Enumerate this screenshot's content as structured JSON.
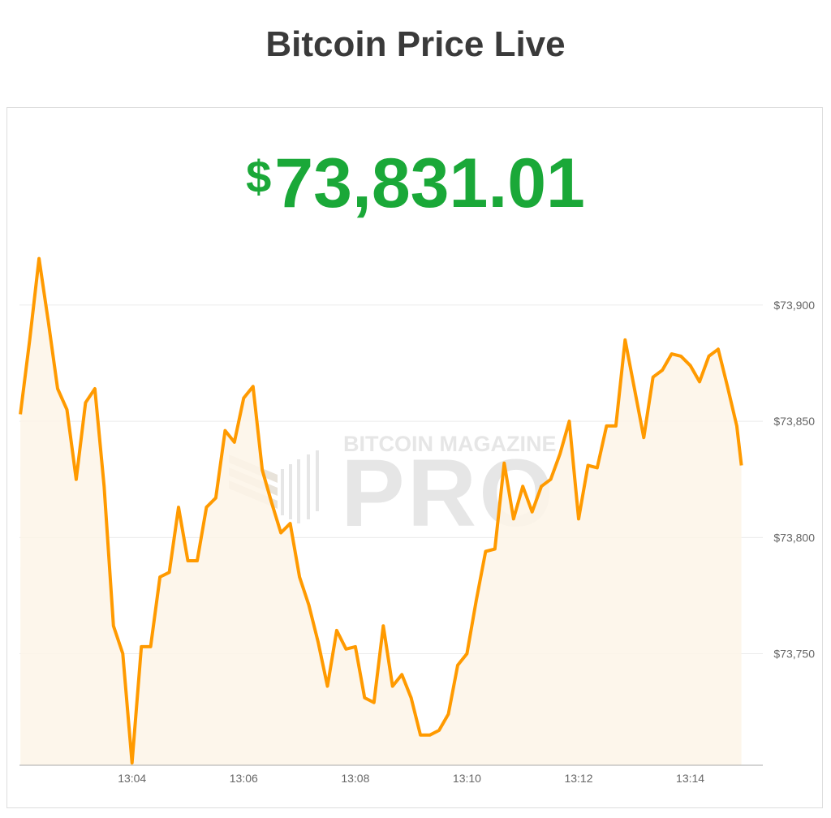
{
  "title": "Bitcoin Price Live",
  "price": {
    "currency_symbol": "$",
    "value": "73,831.01",
    "color": "#1aa838"
  },
  "watermark": {
    "line1": "BITCOIN MAGAZINE",
    "line2": "PRO"
  },
  "chart_data": {
    "type": "area",
    "title": "",
    "xlabel": "",
    "ylabel": "",
    "line_color": "#ff9a00",
    "fill_color": "#fdf4e8",
    "grid": true,
    "y_axis_position": "right",
    "ylim": [
      73702,
      73930
    ],
    "xlim": [
      "13:01:59",
      "13:15:18"
    ],
    "y_ticks": [
      73750,
      73800,
      73850,
      73900
    ],
    "y_tick_labels": [
      "$73,750",
      "$73,800",
      "$73,850",
      "$73,900"
    ],
    "x_ticks": [
      "13:04",
      "13:06",
      "13:08",
      "13:10",
      "13:12",
      "13:14"
    ],
    "series": [
      {
        "x": [
          "13:02:00",
          "13:02:10",
          "13:02:20",
          "13:02:30",
          "13:02:40",
          "13:02:50",
          "13:03:00",
          "13:03:10",
          "13:03:20",
          "13:03:30",
          "13:03:40",
          "13:03:50",
          "13:04:00",
          "13:04:10",
          "13:04:20",
          "13:04:30",
          "13:04:40",
          "13:04:50",
          "13:05:00",
          "13:05:10",
          "13:05:20",
          "13:05:30",
          "13:05:40",
          "13:05:50",
          "13:06:00",
          "13:06:10",
          "13:06:20",
          "13:06:30",
          "13:06:40",
          "13:06:50",
          "13:07:00",
          "13:07:10",
          "13:07:20",
          "13:07:30",
          "13:07:40",
          "13:07:50",
          "13:08:00",
          "13:08:10",
          "13:08:20",
          "13:08:30",
          "13:08:40",
          "13:08:50",
          "13:09:00",
          "13:09:10",
          "13:09:20",
          "13:09:30",
          "13:09:40",
          "13:09:50",
          "13:10:00",
          "13:10:10",
          "13:10:20",
          "13:10:30",
          "13:10:40",
          "13:10:50",
          "13:11:00",
          "13:11:10",
          "13:11:20",
          "13:11:30",
          "13:11:40",
          "13:11:50",
          "13:12:00",
          "13:12:10",
          "13:12:20",
          "13:12:30",
          "13:12:40",
          "13:12:50",
          "13:13:00",
          "13:13:10",
          "13:13:20",
          "13:13:30",
          "13:13:40",
          "13:13:50",
          "13:14:00",
          "13:14:10",
          "13:14:20",
          "13:14:30",
          "13:14:40",
          "13:14:50",
          "13:14:55"
        ],
        "y": [
          73853,
          73885,
          73920,
          73893,
          73864,
          73855,
          73825,
          73858,
          73864,
          73822,
          73762,
          73750,
          73703,
          73753,
          73753,
          73783,
          73785,
          73813,
          73790,
          73790,
          73813,
          73817,
          73846,
          73841,
          73860,
          73865,
          73829,
          73815,
          73802,
          73806,
          73783,
          73771,
          73755,
          73736,
          73760,
          73752,
          73753,
          73731,
          73729,
          73762,
          73736,
          73741,
          73731,
          73715,
          73715,
          73717,
          73724,
          73745,
          73750,
          73773,
          73794,
          73795,
          73832,
          73808,
          73822,
          73811,
          73822,
          73825,
          73836,
          73850,
          73808,
          73831,
          73830,
          73848,
          73848,
          73885,
          73864,
          73843,
          73869,
          73872,
          73879,
          73878,
          73874,
          73867,
          73878,
          73881,
          73865,
          73848,
          73831
        ]
      }
    ]
  }
}
